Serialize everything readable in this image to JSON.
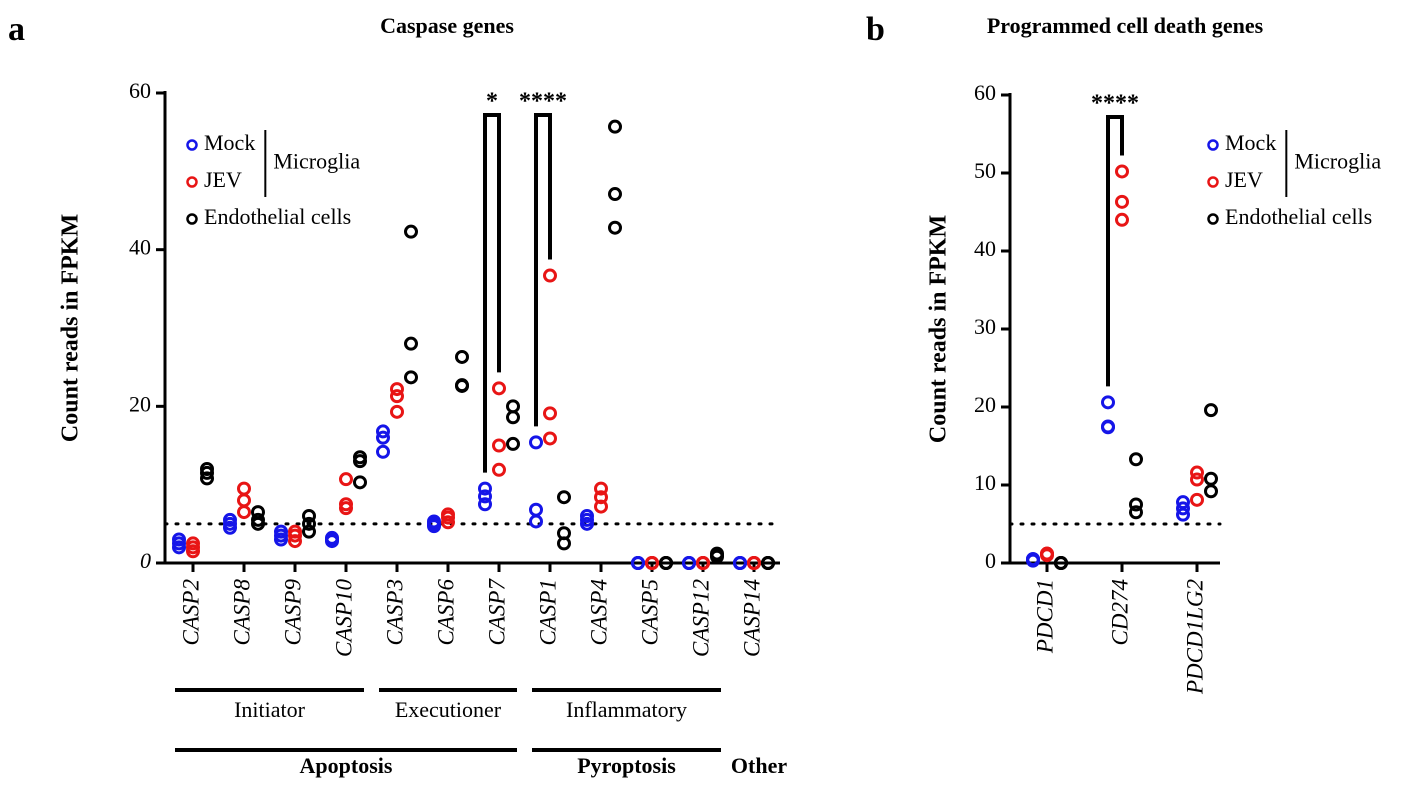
{
  "chart_data": [
    {
      "type": "strip",
      "letter": "a",
      "title": "Caspase genes",
      "ylabel": "Count reads in FPKM",
      "categories": [
        "CASP2",
        "CASP8",
        "CASP9",
        "CASP10",
        "CASP3",
        "CASP6",
        "CASP7",
        "CASP1",
        "CASP4",
        "CASP5",
        "CASP12",
        "CASP14"
      ],
      "series": [
        {
          "name": "Mock",
          "color": "#1515e8",
          "values": [
            [
              2,
              2.5,
              3
            ],
            [
              4.5,
              5,
              5.5
            ],
            [
              3,
              3.5,
              4
            ],
            [
              2.8,
              3,
              3.2
            ],
            [
              14.2,
              16,
              16.8
            ],
            [
              4.7,
              5,
              5.3
            ],
            [
              7.5,
              8.5,
              9.5
            ],
            [
              5.3,
              6.8,
              15.4
            ],
            [
              5,
              5.5,
              6
            ],
            [
              0,
              0,
              0
            ],
            [
              0,
              0,
              0
            ],
            [
              0,
              0,
              0
            ]
          ]
        },
        {
          "name": "JEV",
          "color": "#e81515",
          "values": [
            [
              1.5,
              2,
              2.5
            ],
            [
              6.5,
              8,
              9.5
            ],
            [
              2.8,
              3.5,
              4
            ],
            [
              7,
              7.5,
              10.7
            ],
            [
              19.3,
              21.3,
              22.2
            ],
            [
              5.2,
              5.8,
              6.2
            ],
            [
              11.9,
              15,
              22.3
            ],
            [
              15.9,
              19.1,
              36.7
            ],
            [
              7.2,
              8.4,
              9.5
            ],
            [
              0,
              0,
              0
            ],
            [
              0,
              0,
              0
            ],
            [
              0,
              0,
              0
            ]
          ]
        },
        {
          "name": "Endothelial cells",
          "color": "#000000",
          "values": [
            [
              10.8,
              11.5,
              12
            ],
            [
              5,
              5.5,
              6.5
            ],
            [
              4,
              5,
              6
            ],
            [
              10.3,
              13,
              13.5
            ],
            [
              23.7,
              28,
              42.3
            ],
            [
              22.6,
              22.7,
              26.3
            ],
            [
              15.2,
              18.6,
              20
            ],
            [
              2.5,
              3.8,
              8.4
            ],
            [
              42.8,
              47.1,
              55.7
            ],
            [
              0,
              0,
              0
            ],
            [
              0.8,
              1,
              1.2
            ],
            [
              0,
              0,
              0
            ]
          ]
        }
      ],
      "legend_group": {
        "label": "Microglia",
        "series": [
          "Mock",
          "JEV"
        ]
      },
      "ylim": [
        0,
        60
      ],
      "yticks": [
        0,
        20,
        40,
        60
      ],
      "threshold": 5,
      "significance": [
        {
          "label": "*",
          "category": "CASP7"
        },
        {
          "label": "****",
          "category": "CASP1"
        }
      ],
      "groups": [
        {
          "label": "Initiator",
          "from": "CASP2",
          "to": "CASP10"
        },
        {
          "label": "Executioner",
          "from": "CASP3",
          "to": "CASP7"
        },
        {
          "label": "Inflammatory",
          "from": "CASP1",
          "to": "CASP12"
        }
      ],
      "supergroups": [
        {
          "label": "Apoptosis",
          "from": "CASP2",
          "to": "CASP7"
        },
        {
          "label": "Pyroptosis",
          "from": "CASP1",
          "to": "CASP12"
        },
        {
          "label": "Other",
          "from": "CASP14",
          "to": "CASP14"
        }
      ]
    },
    {
      "type": "strip",
      "letter": "b",
      "title": "Programmed cell death genes",
      "ylabel": "Count reads in FPKM",
      "categories": [
        "PDCD1",
        "CD274",
        "PDCD1LG2"
      ],
      "series": [
        {
          "name": "Mock",
          "color": "#1515e8",
          "values": [
            [
              0.3,
              0.5,
              0.5
            ],
            [
              17.4,
              17.5,
              20.6
            ],
            [
              6.2,
              7,
              7.8
            ]
          ]
        },
        {
          "name": "JEV",
          "color": "#e81515",
          "values": [
            [
              1,
              1.2,
              1.2
            ],
            [
              44,
              46.3,
              50.2
            ],
            [
              8.1,
              10.7,
              11.6
            ]
          ]
        },
        {
          "name": "Endothelial cells",
          "color": "#000000",
          "values": [
            [
              0,
              0,
              0
            ],
            [
              6.5,
              7.5,
              13.3
            ],
            [
              9.2,
              10.8,
              19.6
            ]
          ]
        }
      ],
      "legend_group": {
        "label": "Microglia",
        "series": [
          "Mock",
          "JEV"
        ]
      },
      "ylim": [
        0,
        60
      ],
      "yticks": [
        0,
        10,
        20,
        30,
        40,
        50,
        60
      ],
      "threshold": 5,
      "significance": [
        {
          "label": "****",
          "category": "CD274"
        }
      ],
      "groups": [],
      "supergroups": []
    }
  ]
}
